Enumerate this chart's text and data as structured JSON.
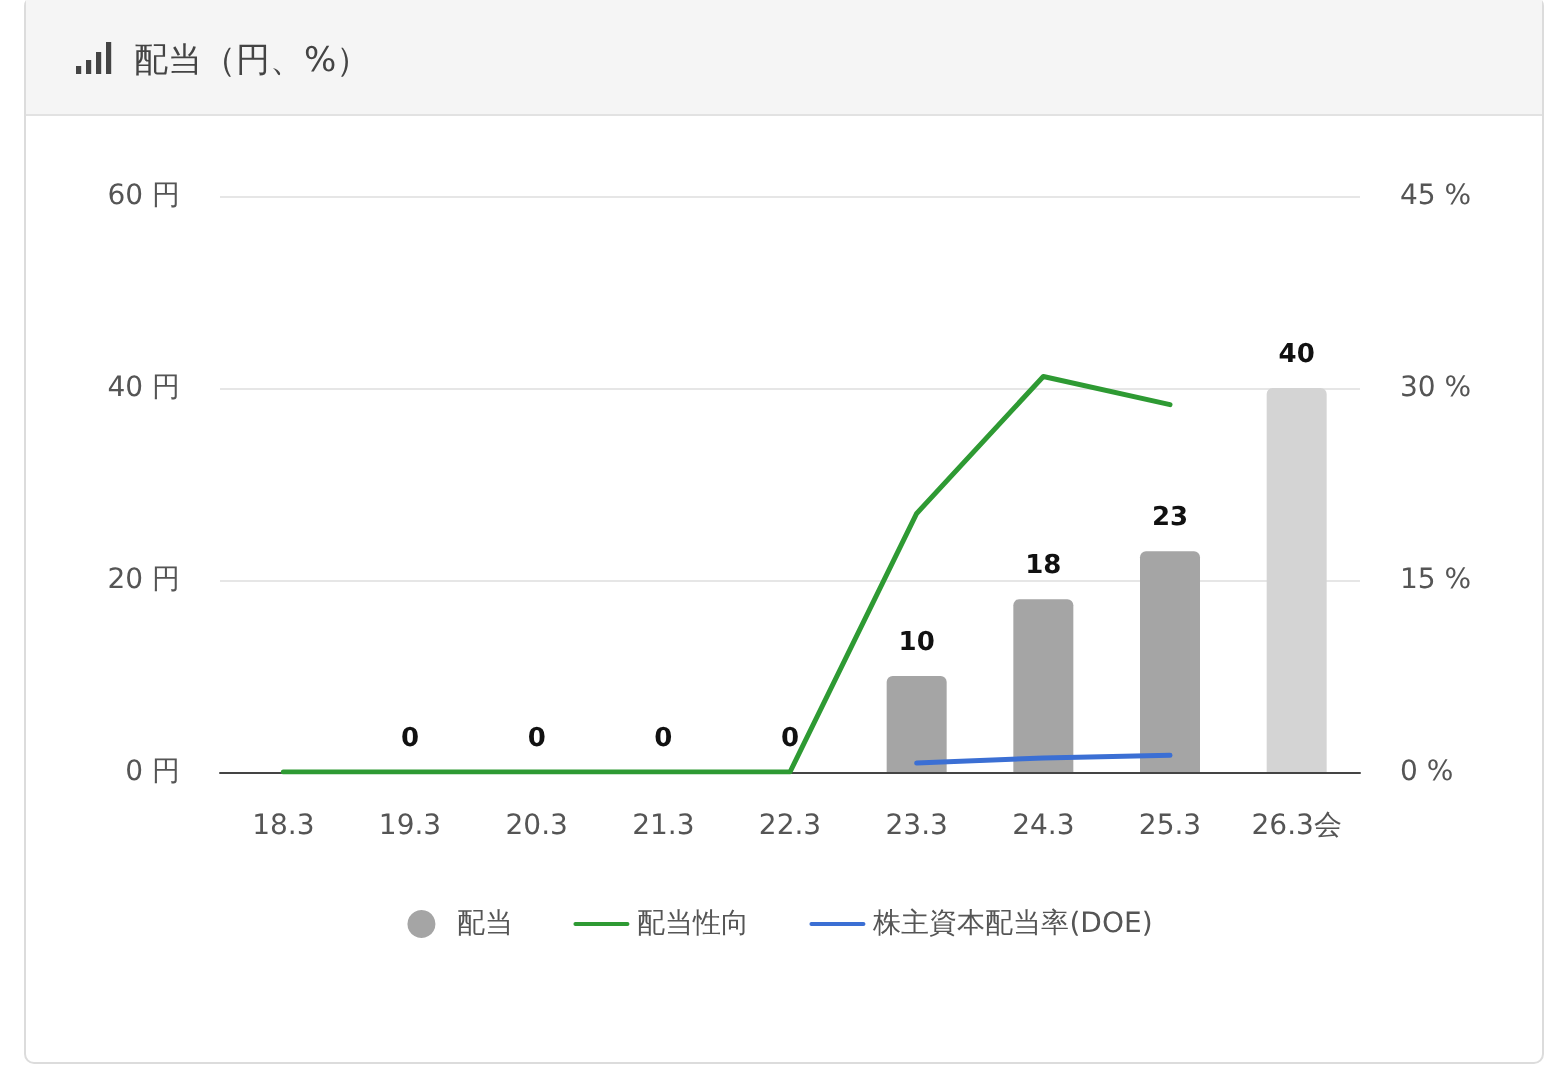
{
  "chart_data": {
    "type": "bar",
    "title": "配当（円、%）",
    "categories": [
      "18.3",
      "19.3",
      "20.3",
      "21.3",
      "22.3",
      "23.3",
      "24.3",
      "25.3",
      "26.3会"
    ],
    "series": [
      {
        "name": "配当",
        "color": "#a5a5a5",
        "colors": [
          "#a5a5a5",
          "#a5a5a5",
          "#a5a5a5",
          "#a5a5a5",
          "#a5a5a5",
          "#a5a5a5",
          "#a5a5a5",
          "#a5a5a5",
          "#d4d4d4"
        ],
        "values": [
          null,
          0,
          0,
          0,
          0,
          10,
          18,
          23,
          40
        ],
        "value_labels": [
          null,
          "0",
          "0",
          "0",
          "0",
          "10",
          "18",
          "23",
          "40"
        ]
      },
      {
        "name": "配当性向",
        "type": "line",
        "axis": "y2",
        "color": "#2e9a33",
        "values": [
          0,
          0,
          0,
          0,
          0,
          20.2,
          30.9,
          28.7,
          null
        ]
      },
      {
        "name": "株主資本配当率(DOE)",
        "type": "line",
        "axis": "y2",
        "color": "#3b6fd4",
        "values": [
          null,
          null,
          null,
          null,
          null,
          0.7,
          1.1,
          1.3,
          null
        ]
      }
    ],
    "ylim": [
      0,
      60
    ],
    "yticks": [
      {
        "value": 0,
        "label": "0 円"
      },
      {
        "value": 20,
        "label": "20 円"
      },
      {
        "value": 40,
        "label": "40 円"
      },
      {
        "value": 60,
        "label": "60 円"
      }
    ],
    "y2lim": [
      0,
      45
    ],
    "y2ticks": [
      {
        "value": 0,
        "label": "0 %"
      },
      {
        "value": 15,
        "label": "15 %"
      },
      {
        "value": 30,
        "label": "30 %"
      },
      {
        "value": 45,
        "label": "45 %"
      }
    ],
    "grid": "y",
    "legend": "bottom",
    "marker": "none"
  }
}
